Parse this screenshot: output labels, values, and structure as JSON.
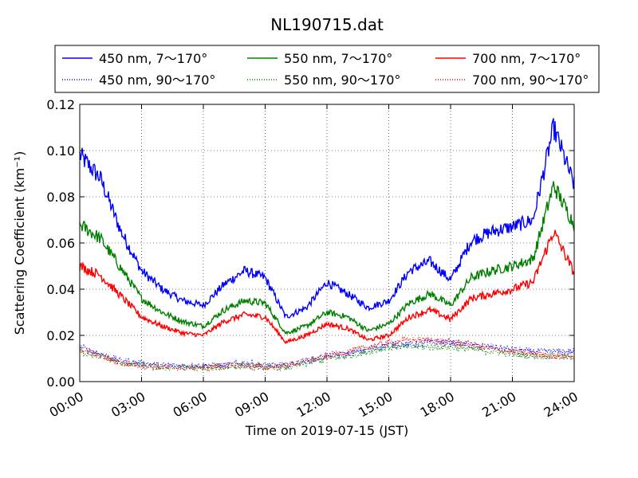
{
  "chart_data": {
    "type": "line",
    "title": "NL190715.dat",
    "xlabel": "Time on 2019-07-15 (JST)",
    "ylabel": "Scattering Coefficient (km⁻¹)",
    "xlim": [
      "2019-07-15 00:00",
      "2019-07-16 00:00"
    ],
    "ylim": [
      0.0,
      0.12
    ],
    "grid": true,
    "legend_position": "top",
    "x_ticks": [
      "00:00",
      "03:00",
      "06:00",
      "09:00",
      "12:00",
      "15:00",
      "18:00",
      "21:00",
      "24:00"
    ],
    "y_ticks": [
      "0.00",
      "0.02",
      "0.04",
      "0.06",
      "0.08",
      "0.10",
      "0.12"
    ],
    "x_hours": [
      0,
      1,
      2,
      3,
      4,
      5,
      6,
      7,
      8,
      9,
      10,
      11,
      12,
      13,
      14,
      15,
      16,
      17,
      18,
      19,
      20,
      21,
      22,
      23,
      24
    ],
    "series": [
      {
        "name": "450 nm, 7～170°",
        "color": "#0000ff",
        "style": "solid",
        "values": [
          0.098,
          0.088,
          0.065,
          0.048,
          0.04,
          0.035,
          0.033,
          0.042,
          0.048,
          0.045,
          0.028,
          0.032,
          0.043,
          0.038,
          0.032,
          0.035,
          0.048,
          0.052,
          0.044,
          0.061,
          0.065,
          0.067,
          0.07,
          0.11,
          0.085
        ]
      },
      {
        "name": "550 nm, 7～170°",
        "color": "#008000",
        "style": "solid",
        "values": [
          0.068,
          0.062,
          0.049,
          0.036,
          0.03,
          0.026,
          0.024,
          0.031,
          0.035,
          0.034,
          0.021,
          0.024,
          0.03,
          0.028,
          0.022,
          0.025,
          0.034,
          0.038,
          0.033,
          0.045,
          0.048,
          0.05,
          0.053,
          0.085,
          0.068
        ]
      },
      {
        "name": "700 nm, 7～170°",
        "color": "#ff0000",
        "style": "solid",
        "values": [
          0.05,
          0.046,
          0.037,
          0.028,
          0.024,
          0.021,
          0.02,
          0.026,
          0.029,
          0.028,
          0.017,
          0.02,
          0.025,
          0.023,
          0.018,
          0.02,
          0.028,
          0.031,
          0.027,
          0.036,
          0.038,
          0.04,
          0.043,
          0.065,
          0.047
        ]
      },
      {
        "name": "450 nm, 90～170°",
        "color": "#0000ff",
        "style": "dotted",
        "values": [
          0.015,
          0.012,
          0.009,
          0.008,
          0.007,
          0.007,
          0.007,
          0.007,
          0.008,
          0.007,
          0.007,
          0.009,
          0.011,
          0.012,
          0.014,
          0.016,
          0.016,
          0.017,
          0.017,
          0.016,
          0.015,
          0.014,
          0.013,
          0.013,
          0.013
        ]
      },
      {
        "name": "550 nm, 90～170°",
        "color": "#008000",
        "style": "dotted",
        "values": [
          0.013,
          0.011,
          0.008,
          0.007,
          0.006,
          0.006,
          0.006,
          0.006,
          0.007,
          0.006,
          0.006,
          0.008,
          0.01,
          0.011,
          0.013,
          0.015,
          0.015,
          0.015,
          0.015,
          0.014,
          0.013,
          0.012,
          0.011,
          0.011,
          0.01
        ]
      },
      {
        "name": "700 nm, 90～170°",
        "color": "#ff0000",
        "style": "dotted",
        "values": [
          0.014,
          0.011,
          0.008,
          0.007,
          0.006,
          0.006,
          0.006,
          0.007,
          0.007,
          0.006,
          0.007,
          0.009,
          0.011,
          0.013,
          0.015,
          0.017,
          0.018,
          0.018,
          0.017,
          0.016,
          0.014,
          0.013,
          0.012,
          0.011,
          0.011
        ]
      }
    ]
  }
}
